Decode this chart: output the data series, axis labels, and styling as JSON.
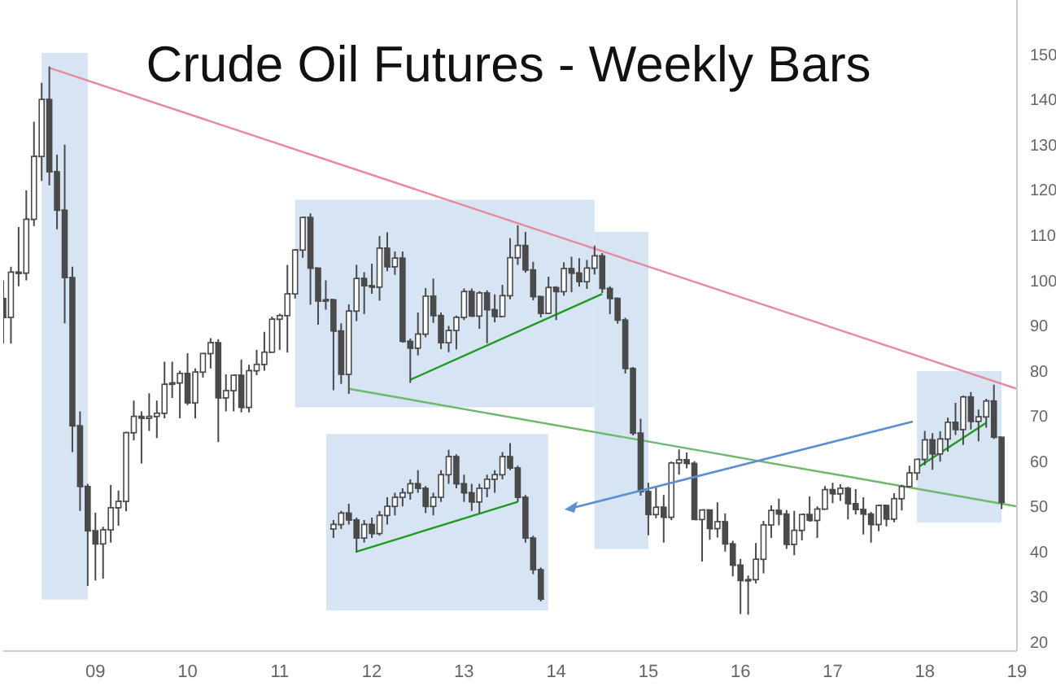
{
  "chart_data": {
    "type": "candlestick",
    "title": "Crude Oil Futures - Weekly Bars",
    "xlim": [
      "2008-01",
      "2019-01"
    ],
    "xticks": [
      {
        "value": "2009",
        "label": "09"
      },
      {
        "value": "2010",
        "label": "10"
      },
      {
        "value": "2011",
        "label": "11"
      },
      {
        "value": "2012",
        "label": "12"
      },
      {
        "value": "2013",
        "label": "13"
      },
      {
        "value": "2014",
        "label": "14"
      },
      {
        "value": "2015",
        "label": "15"
      },
      {
        "value": "2016",
        "label": "16"
      },
      {
        "value": "2017",
        "label": "17"
      },
      {
        "value": "2018",
        "label": "18"
      },
      {
        "value": "2019",
        "label": "19"
      }
    ],
    "ylim": [
      18,
      162
    ],
    "yticks": [
      20,
      30,
      40,
      50,
      60,
      70,
      80,
      90,
      100,
      110,
      120,
      130,
      140,
      150
    ],
    "grid": false,
    "legend": false,
    "bands": [
      {
        "axis": "x",
        "from": "2008-06",
        "to": "2008-12",
        "color": "#d6e4f4"
      },
      {
        "axis": "x",
        "from": "2011-03",
        "to": "2014-06",
        "color": "#d6e4f4"
      },
      {
        "axis": "x",
        "from": "2014-06",
        "to": "2015-01",
        "color": "#d6e4f4"
      },
      {
        "axis": "x",
        "from": "2017-12",
        "to": "2018-11",
        "color": "#d6e4f4"
      }
    ],
    "series": [
      {
        "type": "line",
        "color": "#e88a9c",
        "x": [
          "2008-07",
          "2019-01"
        ],
        "values": [
          147,
          76
        ]
      },
      {
        "type": "line",
        "color": "#6cb86c",
        "x": [
          "2011-10",
          "2019-01"
        ],
        "values": [
          76,
          50
        ]
      },
      {
        "type": "line",
        "color": "#1f9a1f",
        "x": [
          "2012-06",
          "2014-07"
        ],
        "values": [
          78,
          97
        ]
      },
      {
        "type": "line",
        "color": "#1f9a1f",
        "x": [
          "2017-12",
          "2018-09"
        ],
        "values": [
          58.5,
          68.5
        ]
      },
      {
        "type": "line",
        "color": "#1f9a1f",
        "x": [
          "2011-11",
          "2013-08"
        ],
        "values": [
          40,
          51
        ]
      },
      {
        "type": "candlestick",
        "color": "#4a4a4a",
        "x": [
          "2008-01",
          "2008-02",
          "2008-03",
          "2008-04",
          "2008-05",
          "2008-06",
          "2008-07",
          "2008-08",
          "2008-09",
          "2008-10",
          "2008-11",
          "2008-12",
          "2009-01",
          "2009-02",
          "2009-03",
          "2009-04",
          "2009-05",
          "2009-06",
          "2009-07",
          "2009-08",
          "2009-09",
          "2009-10",
          "2009-11",
          "2009-12",
          "2010-01",
          "2010-02",
          "2010-03",
          "2010-04",
          "2010-05",
          "2010-06",
          "2010-07",
          "2010-08",
          "2010-09",
          "2010-10",
          "2010-11",
          "2010-12",
          "2011-01",
          "2011-02",
          "2011-03",
          "2011-04",
          "2011-05",
          "2011-06",
          "2011-07",
          "2011-08",
          "2011-09",
          "2011-10",
          "2011-11",
          "2011-12",
          "2012-01",
          "2012-02",
          "2012-03",
          "2012-04",
          "2012-05",
          "2012-06",
          "2012-07",
          "2012-08",
          "2012-09",
          "2012-10",
          "2012-11",
          "2012-12",
          "2013-01",
          "2013-02",
          "2013-03",
          "2013-04",
          "2013-05",
          "2013-06",
          "2013-07",
          "2013-08",
          "2013-09",
          "2013-10",
          "2013-11",
          "2013-12",
          "2014-01",
          "2014-02",
          "2014-03",
          "2014-04",
          "2014-05",
          "2014-06",
          "2014-07",
          "2014-08",
          "2014-09",
          "2014-10",
          "2014-11",
          "2014-12",
          "2015-01",
          "2015-02",
          "2015-03",
          "2015-04",
          "2015-05",
          "2015-06",
          "2015-07",
          "2015-08",
          "2015-09",
          "2015-10",
          "2015-11",
          "2015-12",
          "2016-01",
          "2016-02",
          "2016-03",
          "2016-04",
          "2016-05",
          "2016-06",
          "2016-07",
          "2016-08",
          "2016-09",
          "2016-10",
          "2016-11",
          "2016-12",
          "2017-01",
          "2017-02",
          "2017-03",
          "2017-04",
          "2017-05",
          "2017-06",
          "2017-07",
          "2017-08",
          "2017-09",
          "2017-10",
          "2017-11",
          "2017-12",
          "2018-01",
          "2018-02",
          "2018-03",
          "2018-04",
          "2018-05",
          "2018-06",
          "2018-07",
          "2018-08",
          "2018-09",
          "2018-10",
          "2018-11"
        ],
        "ohlc": [
          [
            96,
            100,
            86,
            91.8
          ],
          [
            91.8,
            103,
            86,
            101.8
          ],
          [
            101.8,
            111.8,
            98.7,
            101.6
          ],
          [
            101.6,
            119.9,
            100,
            113.5
          ],
          [
            113.5,
            135.1,
            112,
            127.4
          ],
          [
            127.4,
            143.7,
            122,
            140
          ],
          [
            140,
            147.3,
            121,
            124
          ],
          [
            124,
            127.8,
            111.3,
            115.5
          ],
          [
            115.5,
            130,
            90.5,
            100.6
          ],
          [
            100.6,
            103,
            62,
            67.8
          ],
          [
            67.8,
            71,
            49,
            54.4
          ],
          [
            54.4,
            55,
            32.4,
            44.6
          ],
          [
            44.6,
            48.6,
            33.6,
            41.7
          ],
          [
            41.7,
            45.5,
            34,
            44.8
          ],
          [
            44.8,
            54.7,
            42,
            49.7
          ],
          [
            49.7,
            53.5,
            45.7,
            51.1
          ],
          [
            51.1,
            66.5,
            48.9,
            66.3
          ],
          [
            66.3,
            73.4,
            64.6,
            69.9
          ],
          [
            69.9,
            71,
            59.5,
            69.5
          ],
          [
            69.5,
            75,
            66.7,
            69.9
          ],
          [
            69.9,
            73.4,
            65.1,
            70.6
          ],
          [
            70.6,
            82,
            69.5,
            77
          ],
          [
            77,
            82,
            74,
            77.3
          ],
          [
            77.3,
            80,
            69.5,
            79.4
          ],
          [
            79.4,
            83.9,
            72.4,
            72.9
          ],
          [
            72.9,
            80.5,
            69.5,
            79.7
          ],
          [
            79.7,
            83.9,
            78.5,
            83.8
          ],
          [
            83.8,
            87.2,
            80.5,
            86.2
          ],
          [
            86.2,
            87,
            64.2,
            74
          ],
          [
            74,
            79.2,
            71,
            75.6
          ],
          [
            75.6,
            79,
            71,
            79
          ],
          [
            79,
            82.5,
            70.8,
            71.9
          ],
          [
            71.9,
            81.3,
            70.8,
            80
          ],
          [
            80,
            84.6,
            79,
            81.4
          ],
          [
            81.4,
            88.6,
            80,
            84.1
          ],
          [
            84.1,
            92,
            84,
            91.4
          ],
          [
            91.4,
            92.6,
            84.6,
            92.2
          ],
          [
            92.2,
            103.4,
            84,
            97
          ],
          [
            97,
            106.9,
            96,
            106.7
          ],
          [
            106.7,
            113.9,
            105,
            113.9
          ],
          [
            113.9,
            114.8,
            94.6,
            102.7
          ],
          [
            102.7,
            102.8,
            90.2,
            95.4
          ],
          [
            95.4,
            100,
            93.5,
            95.7
          ],
          [
            95.7,
            95.8,
            75.7,
            88.8
          ],
          [
            88.8,
            90.5,
            77.1,
            79.2
          ],
          [
            79.2,
            94.7,
            74.9,
            93.2
          ],
          [
            93.2,
            103.4,
            91,
            100.4
          ],
          [
            100.4,
            101.8,
            92.5,
            98.8
          ],
          [
            98.8,
            103.7,
            97,
            98.5
          ],
          [
            98.5,
            109.8,
            95.5,
            107.1
          ],
          [
            107.1,
            110.6,
            102,
            103
          ],
          [
            103,
            106.4,
            101.2,
            104.9
          ],
          [
            104.9,
            106.4,
            86.2,
            86.5
          ],
          [
            86.5,
            87.1,
            77.3,
            85
          ],
          [
            85,
            92.9,
            83.4,
            88.1
          ],
          [
            88.1,
            98.3,
            87.4,
            96.5
          ],
          [
            96.5,
            100.4,
            90.6,
            92.2
          ],
          [
            92.2,
            92.9,
            84.8,
            86.2
          ],
          [
            86.2,
            89.9,
            84.1,
            88.9
          ],
          [
            88.9,
            92.2,
            84.7,
            91.8
          ],
          [
            91.8,
            98.2,
            91.2,
            97.5
          ],
          [
            97.5,
            98.2,
            91.9,
            92.1
          ],
          [
            92.1,
            97.6,
            89.3,
            97.2
          ],
          [
            97.2,
            97.8,
            86.1,
            93.5
          ],
          [
            93.5,
            96.9,
            90.7,
            92
          ],
          [
            92,
            99,
            92,
            96.6
          ],
          [
            96.6,
            109.3,
            95.8,
            105
          ],
          [
            105,
            112.2,
            103.4,
            107.7
          ],
          [
            107.7,
            110.7,
            101.7,
            102.3
          ],
          [
            102.3,
            104.1,
            95.6,
            96.4
          ],
          [
            96.4,
            96.5,
            91.8,
            92.7
          ],
          [
            92.7,
            100.8,
            92.5,
            98.4
          ],
          [
            98.4,
            98.7,
            91.2,
            97.5
          ],
          [
            97.5,
            104,
            96.6,
            102.6
          ],
          [
            102.6,
            105.2,
            97.4,
            101.6
          ],
          [
            101.6,
            104.9,
            98.6,
            99.7
          ],
          [
            99.7,
            104.5,
            98.1,
            102.7
          ],
          [
            102.7,
            107.7,
            101.3,
            105.4
          ],
          [
            105.4,
            106,
            97.2,
            98.2
          ],
          [
            98.2,
            98.7,
            92.5,
            96
          ],
          [
            96,
            96.2,
            90.4,
            91.2
          ],
          [
            91.2,
            91.7,
            79.4,
            80.5
          ],
          [
            80.5,
            80.8,
            65.7,
            66.2
          ],
          [
            66.2,
            69.4,
            52.4,
            53.3
          ],
          [
            53.3,
            55.2,
            43.6,
            48.2
          ],
          [
            48.2,
            54.2,
            47.4,
            49.8
          ],
          [
            49.8,
            52.5,
            42,
            47.6
          ],
          [
            47.6,
            59.9,
            47,
            59.6
          ],
          [
            59.6,
            62.6,
            57,
            60.3
          ],
          [
            60.3,
            61.9,
            58.4,
            59.5
          ],
          [
            59.5,
            60,
            47,
            47.1
          ],
          [
            47.1,
            49.3,
            37.8,
            49.2
          ],
          [
            49.2,
            49.3,
            42.6,
            45.1
          ],
          [
            45.1,
            50.9,
            43.1,
            46.6
          ],
          [
            46.6,
            48.4,
            40,
            41.7
          ],
          [
            41.7,
            42.4,
            34.5,
            37
          ],
          [
            37,
            38.4,
            26.2,
            33.6
          ],
          [
            33.6,
            34.7,
            26.05,
            33.8
          ],
          [
            33.8,
            41.9,
            33,
            38.3
          ],
          [
            38.3,
            46.8,
            35.2,
            45.9
          ],
          [
            45.9,
            50.2,
            43,
            49.1
          ],
          [
            49.1,
            51.7,
            45.8,
            48.3
          ],
          [
            48.3,
            49.2,
            40.6,
            41.6
          ],
          [
            41.6,
            49,
            39.2,
            44.7
          ],
          [
            44.7,
            48.3,
            42.5,
            48.2
          ],
          [
            48.2,
            52.2,
            46.6,
            46.9
          ],
          [
            46.9,
            50,
            43,
            49.4
          ],
          [
            49.4,
            54.5,
            49.3,
            53.7
          ],
          [
            53.7,
            55.2,
            50.7,
            52.8
          ],
          [
            52.8,
            54.9,
            51.2,
            54
          ],
          [
            54,
            54.3,
            47.1,
            50.6
          ],
          [
            50.6,
            53.8,
            48.2,
            49.3
          ],
          [
            49.3,
            52,
            43.8,
            48.3
          ],
          [
            48.3,
            48.8,
            42,
            46
          ],
          [
            46,
            50.4,
            44.5,
            50.2
          ],
          [
            50.2,
            50.4,
            45.6,
            47.2
          ],
          [
            47.2,
            52.9,
            46.5,
            51.7
          ],
          [
            51.7,
            54.8,
            49.1,
            54.4
          ],
          [
            54.4,
            59,
            54.2,
            57.4
          ],
          [
            57.4,
            60.5,
            55.8,
            60.4
          ],
          [
            60.4,
            66.7,
            59.1,
            64.7
          ],
          [
            64.7,
            66.2,
            58.1,
            61.6
          ],
          [
            61.6,
            66.6,
            59.9,
            64.9
          ],
          [
            64.9,
            69.6,
            62.1,
            68.6
          ],
          [
            68.6,
            72.9,
            65.8,
            67
          ],
          [
            67,
            74.5,
            63.6,
            74.2
          ],
          [
            74.2,
            75.3,
            67,
            68.8
          ],
          [
            68.8,
            71.4,
            64.4,
            69.8
          ],
          [
            69.8,
            73.8,
            67.4,
            73.3
          ],
          [
            73.3,
            76.9,
            64.9,
            65.3
          ],
          [
            65.3,
            65.3,
            49.4,
            50.9
          ]
        ]
      },
      {
        "type": "candlestick",
        "color": "#4a4a4a",
        "x": [
          "2011-08",
          "2011-09",
          "2011-10",
          "2011-11",
          "2011-12",
          "2012-01",
          "2012-02",
          "2012-03",
          "2012-04",
          "2012-05",
          "2012-06",
          "2012-07",
          "2012-08",
          "2012-09",
          "2012-10",
          "2012-11",
          "2012-12",
          "2013-01",
          "2013-02",
          "2013-03",
          "2013-04",
          "2013-05",
          "2013-06",
          "2013-07",
          "2013-08",
          "2013-09",
          "2013-10",
          "2013-11"
        ],
        "ohlc": [
          [
            45,
            47,
            43,
            46
          ],
          [
            46,
            49,
            45,
            48.5
          ],
          [
            48.5,
            50.6,
            46,
            47
          ],
          [
            47,
            47.5,
            39.8,
            43
          ],
          [
            43,
            47,
            42,
            46
          ],
          [
            46,
            47.5,
            43,
            44
          ],
          [
            44,
            49,
            43.5,
            48
          ],
          [
            48,
            52,
            46,
            50
          ],
          [
            50,
            53,
            48,
            52
          ],
          [
            52,
            54,
            50,
            53
          ],
          [
            53,
            56,
            51.5,
            55
          ],
          [
            55,
            58,
            53,
            54
          ],
          [
            54,
            54.5,
            48.5,
            50
          ],
          [
            50,
            53,
            48,
            52
          ],
          [
            52,
            58,
            51,
            57
          ],
          [
            57,
            62.5,
            55,
            61
          ],
          [
            61,
            61.5,
            54,
            55
          ],
          [
            55,
            57,
            51,
            53
          ],
          [
            53,
            55,
            49,
            51
          ],
          [
            51,
            55,
            48.5,
            54
          ],
          [
            54,
            57,
            52,
            56
          ],
          [
            56,
            58,
            53,
            57
          ],
          [
            57,
            62,
            56,
            61
          ],
          [
            61,
            64,
            58,
            58.5
          ],
          [
            58.5,
            59,
            51,
            52
          ],
          [
            52,
            52.5,
            42,
            43
          ],
          [
            43,
            43.5,
            35,
            36
          ],
          [
            36,
            36.5,
            29,
            29.5
          ]
        ]
      }
    ]
  }
}
